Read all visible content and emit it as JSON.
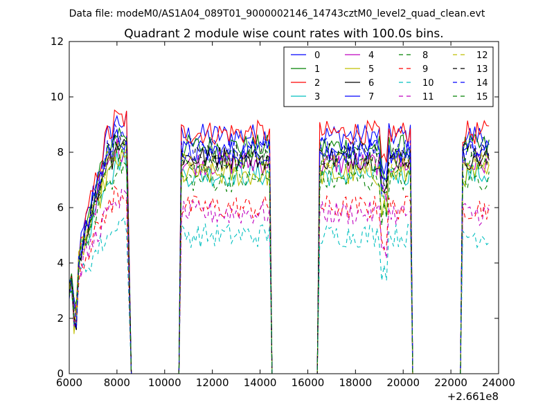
{
  "figure": {
    "suptitle": "Data file: modeM0/AS1A04_089T01_9000002146_14743cztM0_level2_quad_clean.evt",
    "title": "Quadrant 2 module wise count rates with 100.0s bins.",
    "x_offset_label": "+2.661e8"
  },
  "chart_data": {
    "type": "line",
    "title": "Quadrant 2 module wise count rates with 100.0s bins.",
    "xlabel": "",
    "ylabel": "",
    "xlim": [
      6000,
      24000
    ],
    "ylim": [
      0,
      12
    ],
    "x_ticks": [
      6000,
      8000,
      10000,
      12000,
      14000,
      16000,
      18000,
      20000,
      22000,
      24000
    ],
    "y_ticks": [
      0,
      2,
      4,
      6,
      8,
      10,
      12
    ],
    "x_offset": "+2.661e8",
    "grid": false,
    "legend_position": "top-right",
    "legend_columns": 4,
    "segments": [
      {
        "x_start": 6000,
        "x_end": 8400
      },
      {
        "x_start": 10700,
        "x_end": 14400
      },
      {
        "x_start": 16500,
        "x_end": 20300
      },
      {
        "x_start": 22500,
        "x_end": 23600
      }
    ],
    "zero_gaps": [
      {
        "x_start": 8600,
        "x_end": 10600
      },
      {
        "x_start": 14500,
        "x_end": 16400
      },
      {
        "x_start": 20400,
        "x_end": 22400
      }
    ],
    "series": [
      {
        "name": "0",
        "color": "#0000ff",
        "dash": "solid",
        "level": 8.6
      },
      {
        "name": "1",
        "color": "#008000",
        "dash": "solid",
        "level": 8.2
      },
      {
        "name": "2",
        "color": "#ff0000",
        "dash": "solid",
        "level": 8.7
      },
      {
        "name": "3",
        "color": "#00bfbf",
        "dash": "solid",
        "level": 7.2
      },
      {
        "name": "4",
        "color": "#bf00bf",
        "dash": "solid",
        "level": 7.6
      },
      {
        "name": "5",
        "color": "#bfbf00",
        "dash": "solid",
        "level": 7.2
      },
      {
        "name": "6",
        "color": "#000000",
        "dash": "solid",
        "level": 7.8
      },
      {
        "name": "7",
        "color": "#0000ff",
        "dash": "solid",
        "level": 8.0
      },
      {
        "name": "8",
        "color": "#008000",
        "dash": "dashed",
        "level": 7.0
      },
      {
        "name": "9",
        "color": "#ff0000",
        "dash": "dashed",
        "level": 6.0
      },
      {
        "name": "10",
        "color": "#00bfbf",
        "dash": "dashed",
        "level": 5.0
      },
      {
        "name": "11",
        "color": "#bf00bf",
        "dash": "dashed",
        "level": 5.8
      },
      {
        "name": "12",
        "color": "#bfbf00",
        "dash": "dashed",
        "level": 7.6
      },
      {
        "name": "13",
        "color": "#000000",
        "dash": "dashed",
        "level": 7.9
      },
      {
        "name": "14",
        "color": "#0000ff",
        "dash": "dashed",
        "level": 8.1
      },
      {
        "name": "15",
        "color": "#008000",
        "dash": "dashed",
        "level": 7.7
      }
    ]
  }
}
